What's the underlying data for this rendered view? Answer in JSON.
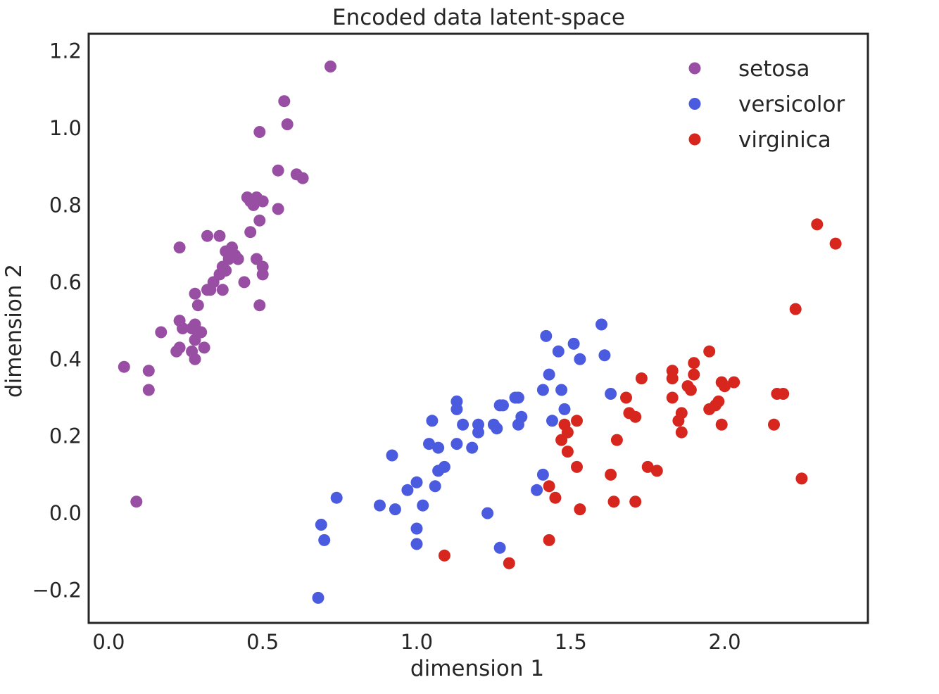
{
  "chart_data": {
    "type": "scatter",
    "title": "Encoded data latent-space",
    "xlabel": "dimension 1",
    "ylabel": "dimension 2",
    "xlim": [
      -0.065,
      2.465
    ],
    "ylim": [
      -0.285,
      1.245
    ],
    "xticks": [
      0.0,
      0.5,
      1.0,
      1.5,
      2.0
    ],
    "xtick_labels": [
      "0.0",
      "0.5",
      "1.0",
      "1.5",
      "2.0"
    ],
    "yticks": [
      -0.2,
      0.0,
      0.2,
      0.4,
      0.6,
      0.8,
      1.0,
      1.2
    ],
    "ytick_labels": [
      "−0.2",
      "0.0",
      "0.2",
      "0.4",
      "0.6",
      "0.8",
      "1.0",
      "1.2"
    ],
    "grid": false,
    "legend_position": "top-right",
    "series": [
      {
        "name": "setosa",
        "color": "#984ea3",
        "x": [
          0.72,
          0.49,
          0.57,
          0.58,
          0.55,
          0.61,
          0.63,
          0.45,
          0.47,
          0.46,
          0.48,
          0.5,
          0.55,
          0.49,
          0.46,
          0.23,
          0.32,
          0.36,
          0.38,
          0.4,
          0.41,
          0.39,
          0.42,
          0.37,
          0.36,
          0.38,
          0.48,
          0.5,
          0.5,
          0.44,
          0.34,
          0.32,
          0.33,
          0.37,
          0.28,
          0.29,
          0.49,
          0.23,
          0.24,
          0.27,
          0.28,
          0.29,
          0.3,
          0.28,
          0.31,
          0.23,
          0.22,
          0.27,
          0.28,
          0.17,
          0.05,
          0.13,
          0.13,
          0.09
        ],
        "y": [
          1.16,
          0.99,
          1.07,
          1.01,
          0.89,
          0.88,
          0.87,
          0.82,
          0.8,
          0.81,
          0.82,
          0.81,
          0.79,
          0.76,
          0.73,
          0.69,
          0.72,
          0.72,
          0.68,
          0.69,
          0.67,
          0.66,
          0.66,
          0.64,
          0.62,
          0.63,
          0.66,
          0.64,
          0.62,
          0.6,
          0.6,
          0.58,
          0.58,
          0.58,
          0.57,
          0.54,
          0.54,
          0.5,
          0.48,
          0.48,
          0.49,
          0.47,
          0.47,
          0.45,
          0.43,
          0.43,
          0.42,
          0.42,
          0.4,
          0.47,
          0.38,
          0.37,
          0.32,
          0.03
        ]
      },
      {
        "name": "versicolor",
        "color": "#4b5be0",
        "x": [
          1.6,
          1.42,
          1.46,
          1.51,
          1.53,
          1.61,
          1.43,
          1.41,
          1.47,
          1.63,
          1.44,
          1.48,
          1.32,
          1.33,
          1.28,
          1.27,
          1.34,
          1.33,
          1.13,
          1.13,
          1.15,
          1.05,
          1.2,
          1.2,
          1.25,
          1.26,
          1.04,
          1.13,
          1.07,
          1.18,
          1.09,
          1.07,
          0.92,
          1.06,
          0.97,
          1.0,
          1.02,
          0.74,
          0.88,
          0.93,
          1.23,
          1.41,
          1.39,
          0.69,
          0.7,
          1.0,
          1.0,
          1.27,
          0.68
        ],
        "y": [
          0.49,
          0.46,
          0.42,
          0.44,
          0.4,
          0.41,
          0.36,
          0.32,
          0.32,
          0.31,
          0.24,
          0.27,
          0.3,
          0.3,
          0.28,
          0.28,
          0.25,
          0.23,
          0.29,
          0.27,
          0.23,
          0.24,
          0.23,
          0.21,
          0.23,
          0.22,
          0.18,
          0.18,
          0.17,
          0.17,
          0.12,
          0.11,
          0.15,
          0.07,
          0.06,
          0.08,
          0.02,
          0.04,
          0.02,
          0.01,
          -0.0,
          0.1,
          0.06,
          -0.03,
          -0.07,
          -0.04,
          -0.08,
          -0.09,
          -0.22
        ]
      },
      {
        "name": "virginica",
        "color": "#d7261e",
        "x": [
          2.3,
          2.36,
          2.23,
          1.95,
          1.9,
          1.83,
          1.9,
          1.83,
          1.73,
          1.88,
          1.89,
          1.99,
          2.03,
          2.0,
          1.98,
          1.97,
          1.95,
          1.83,
          1.68,
          1.69,
          1.71,
          1.86,
          1.85,
          1.86,
          1.99,
          2.17,
          2.19,
          2.16,
          1.52,
          1.48,
          1.49,
          1.47,
          1.65,
          1.49,
          1.52,
          1.63,
          1.75,
          1.78,
          1.43,
          1.45,
          1.53,
          1.64,
          1.71,
          2.25,
          1.43,
          1.09,
          1.3
        ],
        "y": [
          0.75,
          0.7,
          0.53,
          0.42,
          0.39,
          0.37,
          0.36,
          0.35,
          0.35,
          0.33,
          0.32,
          0.34,
          0.34,
          0.33,
          0.29,
          0.28,
          0.27,
          0.3,
          0.3,
          0.26,
          0.25,
          0.26,
          0.24,
          0.21,
          0.23,
          0.31,
          0.31,
          0.23,
          0.24,
          0.23,
          0.21,
          0.19,
          0.19,
          0.16,
          0.12,
          0.1,
          0.12,
          0.11,
          0.07,
          0.04,
          0.01,
          0.03,
          0.03,
          0.09,
          -0.07,
          -0.11,
          -0.13
        ]
      }
    ]
  }
}
